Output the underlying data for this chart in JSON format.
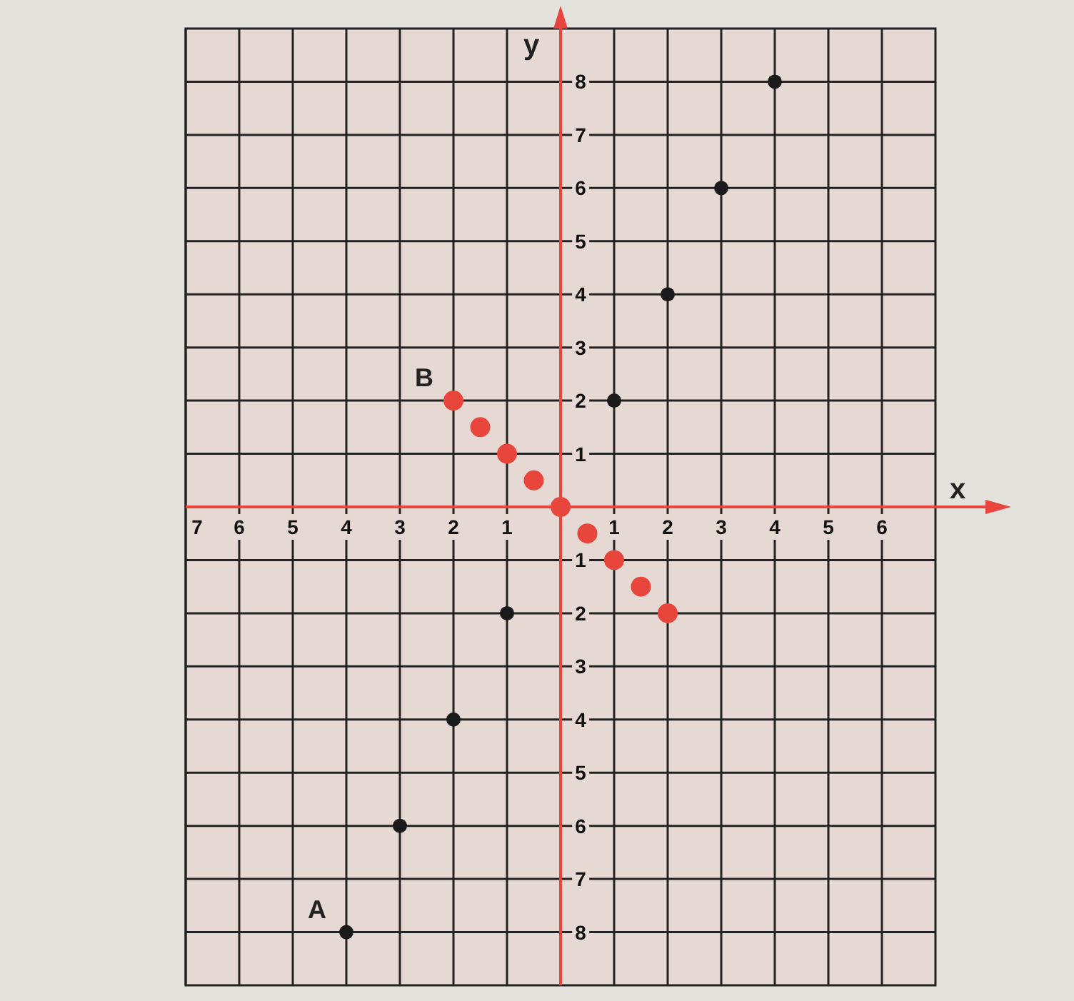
{
  "chart_data": {
    "type": "scatter",
    "xlabel": "x",
    "ylabel": "y",
    "xlim": [
      -7,
      7
    ],
    "ylim": [
      -9,
      9
    ],
    "xticks": [
      {
        "value": -7,
        "label": "7"
      },
      {
        "value": -6,
        "label": "6"
      },
      {
        "value": -5,
        "label": "5"
      },
      {
        "value": -4,
        "label": "4"
      },
      {
        "value": -3,
        "label": "3"
      },
      {
        "value": -2,
        "label": "2"
      },
      {
        "value": -1,
        "label": "1"
      },
      1,
      2,
      3,
      4,
      5,
      6
    ],
    "yticks": [
      {
        "value": -8,
        "label": "8"
      },
      {
        "value": -7,
        "label": "7"
      },
      {
        "value": -6,
        "label": "6"
      },
      {
        "value": -5,
        "label": "5"
      },
      {
        "value": -4,
        "label": "4"
      },
      {
        "value": -3,
        "label": "3"
      },
      {
        "value": -2,
        "label": "2"
      },
      {
        "value": -1,
        "label": "1"
      },
      1,
      2,
      3,
      4,
      5,
      6,
      7,
      8
    ],
    "grid": true,
    "marker": "circle",
    "series": [
      {
        "color": "#1a1a1a",
        "x": [
          -4,
          -3,
          -2,
          -1,
          1,
          2,
          3,
          4
        ],
        "values": [
          -8,
          -6,
          -4,
          -2,
          2,
          4,
          6,
          8
        ]
      },
      {
        "color": "#e8463c",
        "x": [
          -2,
          -1.5,
          -1,
          -0.5,
          0,
          0.5,
          1,
          1.5,
          2
        ],
        "values": [
          2,
          1.5,
          1,
          0.5,
          0,
          -0.5,
          -1,
          -1.5,
          -2
        ]
      }
    ],
    "annotations": [
      {
        "text": "A",
        "x": -4,
        "y": -8
      },
      {
        "text": "B",
        "x": -2,
        "y": 2
      }
    ]
  }
}
